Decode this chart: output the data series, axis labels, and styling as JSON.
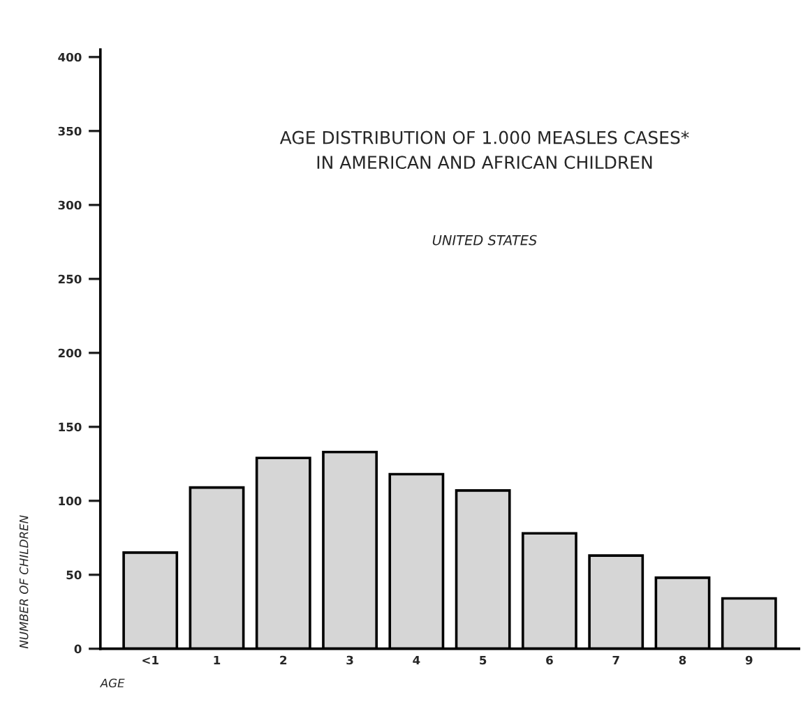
{
  "chart_data": {
    "type": "bar",
    "title": "AGE DISTRIBUTION OF 1.000 MEASLES CASES*\nIN AMERICAN AND AFRICAN CHILDREN",
    "subtitle": "UNITED STATES",
    "xlabel": "AGE",
    "ylabel": "NUMBER OF CHILDREN",
    "categories": [
      "<1",
      "1",
      "2",
      "3",
      "4",
      "5",
      "6",
      "7",
      "8",
      "9"
    ],
    "values": [
      65,
      109,
      129,
      133,
      118,
      107,
      78,
      63,
      48,
      34
    ],
    "color": "#d6d6d6",
    "ylim": [
      0,
      405
    ],
    "yticks": [
      0,
      50,
      100,
      150,
      200,
      250,
      300,
      350,
      400
    ],
    "grid": false
  }
}
